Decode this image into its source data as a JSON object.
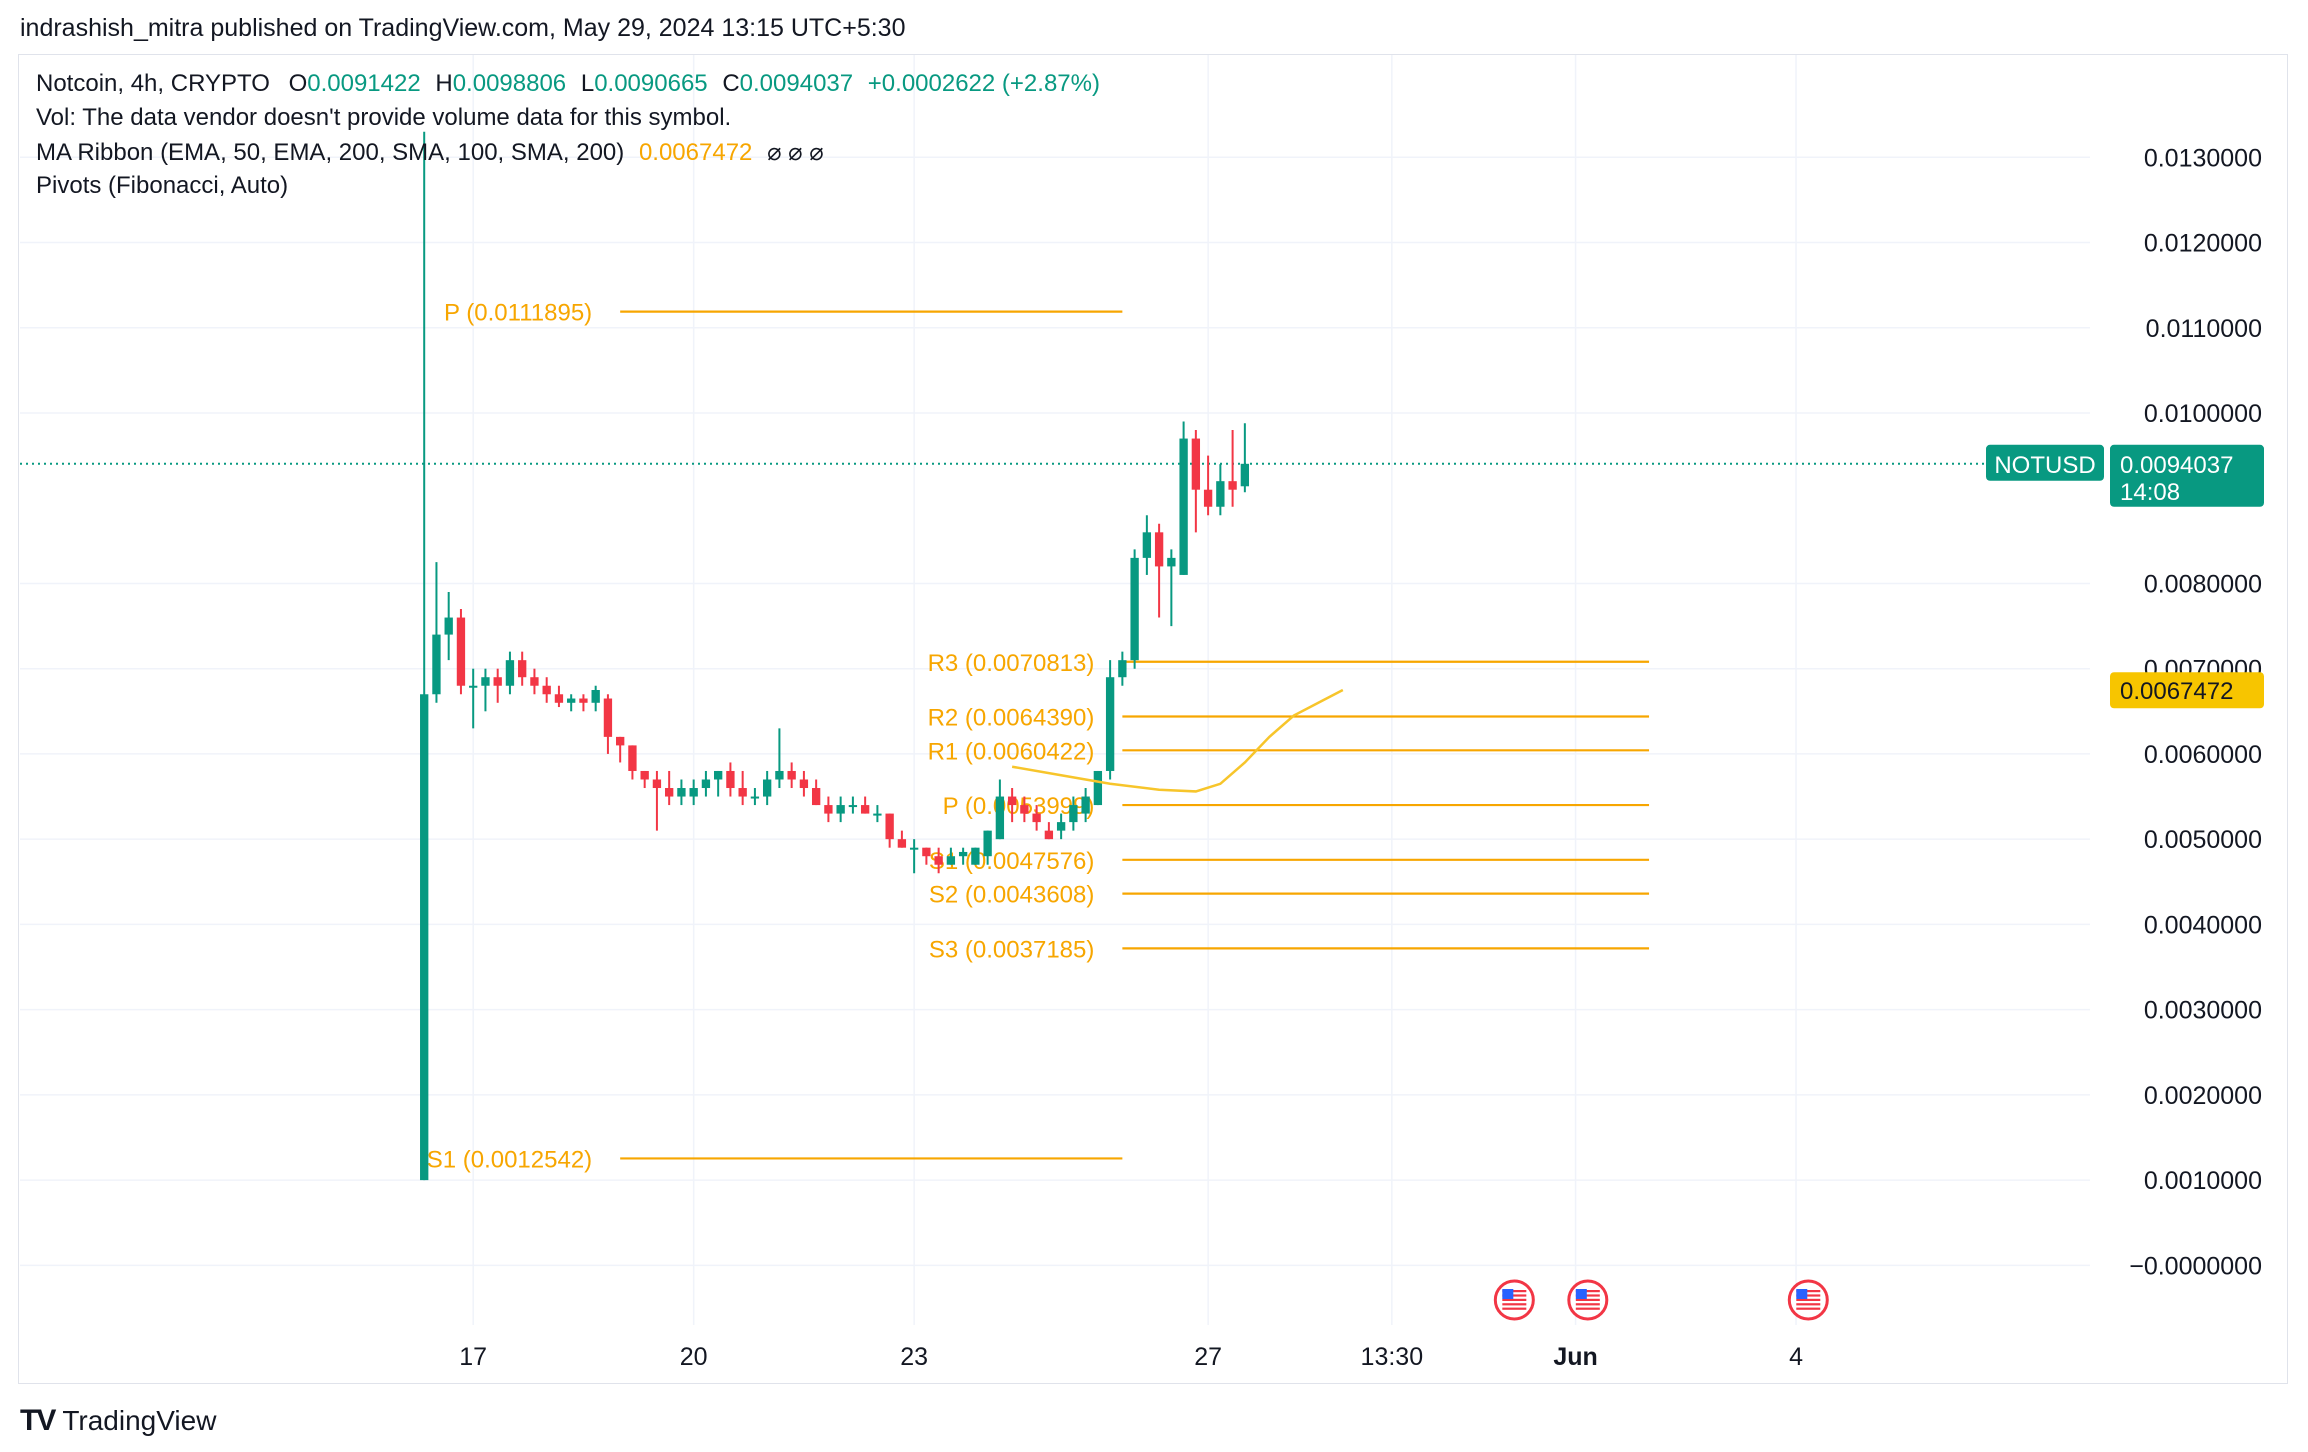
{
  "header": {
    "published": "indrashish_mitra published on TradingView.com, May 29, 2024 13:15 UTC+5:30"
  },
  "legend": {
    "symbol_line": "Notcoin, 4h, CRYPTO",
    "o_label": "O",
    "o_value": "0.0091422",
    "h_label": "H",
    "h_value": "0.0098806",
    "l_label": "L",
    "l_value": "0.0090665",
    "c_label": "C",
    "c_value": "0.0094037",
    "change": "+0.0002622 (+2.87%)",
    "vol_line": "Vol: The data vendor doesn't provide volume data for this symbol.",
    "ma_line": "MA Ribbon (EMA, 50, EMA, 200, SMA, 100, SMA, 200)",
    "ma_value": "0.0067472",
    "ma_na": "⌀  ⌀  ⌀",
    "pivots_line": "Pivots (Fibonacci, Auto)"
  },
  "footer": {
    "brand": "TradingView",
    "logo": "TV"
  },
  "colors": {
    "up": "#089981",
    "down": "#f23645",
    "pivot": "#f7a600",
    "ma": "#f7c52b",
    "grid": "#f0f3fa"
  },
  "chart_data": {
    "type": "candlestick",
    "symbol": "NOTUSD",
    "interval": "4h",
    "y_ticks": [
      "0.0130000",
      "0.0120000",
      "0.0110000",
      "0.0100000",
      "0.0080000",
      "0.0070000",
      "0.0060000",
      "0.0050000",
      "0.0040000",
      "0.0030000",
      "0.0020000",
      "0.0010000",
      "−0.0000000"
    ],
    "y_tick_values": [
      0.013,
      0.012,
      0.011,
      0.01,
      0.008,
      0.007,
      0.006,
      0.005,
      0.004,
      0.003,
      0.002,
      0.001,
      0.0
    ],
    "ylim": [
      -0.0007,
      0.0142
    ],
    "x_ticks": [
      {
        "label": "17",
        "pos": 4
      },
      {
        "label": "20",
        "pos": 22
      },
      {
        "label": "23",
        "pos": 40
      },
      {
        "label": "27",
        "pos": 64
      },
      {
        "label": "13:30",
        "pos": 79
      },
      {
        "label": "Jun",
        "pos": 94,
        "bold": true
      },
      {
        "label": "4",
        "pos": 112
      }
    ],
    "x_range": [
      -33,
      136
    ],
    "last_price_label": {
      "symbol": "NOTUSD",
      "price": "0.0094037",
      "countdown": "14:08",
      "value": 0.0094037
    },
    "ma_price_label": {
      "price": "0.0067472",
      "value": 0.0067472
    },
    "candles": [
      {
        "o": 0.001,
        "h": 0.0133,
        "l": 0.001,
        "c": 0.0067
      },
      {
        "o": 0.0067,
        "h": 0.00825,
        "l": 0.0066,
        "c": 0.0074
      },
      {
        "o": 0.0074,
        "h": 0.0079,
        "l": 0.0071,
        "c": 0.0076
      },
      {
        "o": 0.0076,
        "h": 0.0077,
        "l": 0.0067,
        "c": 0.0068
      },
      {
        "o": 0.0068,
        "h": 0.007,
        "l": 0.0063,
        "c": 0.0068
      },
      {
        "o": 0.0068,
        "h": 0.007,
        "l": 0.0065,
        "c": 0.0069
      },
      {
        "o": 0.0069,
        "h": 0.007,
        "l": 0.0066,
        "c": 0.0068
      },
      {
        "o": 0.0068,
        "h": 0.0072,
        "l": 0.0067,
        "c": 0.0071
      },
      {
        "o": 0.0071,
        "h": 0.0072,
        "l": 0.0068,
        "c": 0.0069
      },
      {
        "o": 0.0069,
        "h": 0.007,
        "l": 0.0067,
        "c": 0.0068
      },
      {
        "o": 0.0068,
        "h": 0.0069,
        "l": 0.0066,
        "c": 0.0067
      },
      {
        "o": 0.0067,
        "h": 0.0068,
        "l": 0.00655,
        "c": 0.0066
      },
      {
        "o": 0.0066,
        "h": 0.0067,
        "l": 0.0065,
        "c": 0.00665
      },
      {
        "o": 0.00665,
        "h": 0.0067,
        "l": 0.0065,
        "c": 0.0066
      },
      {
        "o": 0.0066,
        "h": 0.0068,
        "l": 0.0065,
        "c": 0.00675
      },
      {
        "o": 0.00665,
        "h": 0.0067,
        "l": 0.006,
        "c": 0.0062
      },
      {
        "o": 0.0062,
        "h": 0.0062,
        "l": 0.0059,
        "c": 0.0061
      },
      {
        "o": 0.0061,
        "h": 0.0061,
        "l": 0.0057,
        "c": 0.0058
      },
      {
        "o": 0.0058,
        "h": 0.0058,
        "l": 0.0056,
        "c": 0.0057
      },
      {
        "o": 0.0057,
        "h": 0.0058,
        "l": 0.0051,
        "c": 0.0056
      },
      {
        "o": 0.0056,
        "h": 0.0058,
        "l": 0.0054,
        "c": 0.0055
      },
      {
        "o": 0.0055,
        "h": 0.0057,
        "l": 0.0054,
        "c": 0.0056
      },
      {
        "o": 0.0055,
        "h": 0.0057,
        "l": 0.0054,
        "c": 0.0056
      },
      {
        "o": 0.0056,
        "h": 0.0058,
        "l": 0.0055,
        "c": 0.0057
      },
      {
        "o": 0.0057,
        "h": 0.0058,
        "l": 0.0055,
        "c": 0.0058
      },
      {
        "o": 0.0058,
        "h": 0.0059,
        "l": 0.0055,
        "c": 0.0056
      },
      {
        "o": 0.0056,
        "h": 0.0058,
        "l": 0.0054,
        "c": 0.0055
      },
      {
        "o": 0.0055,
        "h": 0.0056,
        "l": 0.0054,
        "c": 0.0055
      },
      {
        "o": 0.0055,
        "h": 0.0058,
        "l": 0.0054,
        "c": 0.0057
      },
      {
        "o": 0.0057,
        "h": 0.0063,
        "l": 0.0056,
        "c": 0.0058
      },
      {
        "o": 0.0058,
        "h": 0.0059,
        "l": 0.0056,
        "c": 0.0057
      },
      {
        "o": 0.0057,
        "h": 0.0058,
        "l": 0.0055,
        "c": 0.0056
      },
      {
        "o": 0.0056,
        "h": 0.0057,
        "l": 0.0054,
        "c": 0.0054
      },
      {
        "o": 0.0054,
        "h": 0.0055,
        "l": 0.0052,
        "c": 0.0053
      },
      {
        "o": 0.0053,
        "h": 0.0055,
        "l": 0.0052,
        "c": 0.0054
      },
      {
        "o": 0.0054,
        "h": 0.0055,
        "l": 0.0053,
        "c": 0.0054
      },
      {
        "o": 0.0054,
        "h": 0.0055,
        "l": 0.0053,
        "c": 0.0053
      },
      {
        "o": 0.0053,
        "h": 0.0054,
        "l": 0.0052,
        "c": 0.0053
      },
      {
        "o": 0.0053,
        "h": 0.0053,
        "l": 0.0049,
        "c": 0.005
      },
      {
        "o": 0.005,
        "h": 0.0051,
        "l": 0.0049,
        "c": 0.0049
      },
      {
        "o": 0.0049,
        "h": 0.005,
        "l": 0.0046,
        "c": 0.0049
      },
      {
        "o": 0.0049,
        "h": 0.0049,
        "l": 0.0047,
        "c": 0.0048
      },
      {
        "o": 0.0048,
        "h": 0.0049,
        "l": 0.0046,
        "c": 0.0047
      },
      {
        "o": 0.0047,
        "h": 0.0049,
        "l": 0.0047,
        "c": 0.0048
      },
      {
        "o": 0.0048,
        "h": 0.0049,
        "l": 0.0047,
        "c": 0.00485
      },
      {
        "o": 0.0047,
        "h": 0.0049,
        "l": 0.0047,
        "c": 0.0049
      },
      {
        "o": 0.0048,
        "h": 0.0051,
        "l": 0.0047,
        "c": 0.0051
      },
      {
        "o": 0.005,
        "h": 0.0057,
        "l": 0.005,
        "c": 0.0055
      },
      {
        "o": 0.0055,
        "h": 0.0056,
        "l": 0.0052,
        "c": 0.0054
      },
      {
        "o": 0.0054,
        "h": 0.0055,
        "l": 0.0052,
        "c": 0.0053
      },
      {
        "o": 0.0053,
        "h": 0.0054,
        "l": 0.0051,
        "c": 0.0052
      },
      {
        "o": 0.0051,
        "h": 0.0052,
        "l": 0.005,
        "c": 0.005
      },
      {
        "o": 0.0051,
        "h": 0.0053,
        "l": 0.005,
        "c": 0.0052
      },
      {
        "o": 0.0052,
        "h": 0.0055,
        "l": 0.0051,
        "c": 0.0054
      },
      {
        "o": 0.0053,
        "h": 0.0056,
        "l": 0.0052,
        "c": 0.0055
      },
      {
        "o": 0.0054,
        "h": 0.0058,
        "l": 0.0054,
        "c": 0.0058
      },
      {
        "o": 0.0058,
        "h": 0.0071,
        "l": 0.0057,
        "c": 0.0069
      },
      {
        "o": 0.0069,
        "h": 0.0072,
        "l": 0.0068,
        "c": 0.0071
      },
      {
        "o": 0.0071,
        "h": 0.0084,
        "l": 0.007,
        "c": 0.0083
      },
      {
        "o": 0.0083,
        "h": 0.0088,
        "l": 0.0081,
        "c": 0.0086
      },
      {
        "o": 0.0086,
        "h": 0.0087,
        "l": 0.0076,
        "c": 0.0082
      },
      {
        "o": 0.0082,
        "h": 0.0084,
        "l": 0.0075,
        "c": 0.0083
      },
      {
        "o": 0.0081,
        "h": 0.0099,
        "l": 0.0081,
        "c": 0.0097
      },
      {
        "o": 0.0097,
        "h": 0.0098,
        "l": 0.0086,
        "c": 0.0091
      },
      {
        "o": 0.0091,
        "h": 0.0095,
        "l": 0.0088,
        "c": 0.0089
      },
      {
        "o": 0.0089,
        "h": 0.0094,
        "l": 0.0088,
        "c": 0.0092
      },
      {
        "o": 0.0092,
        "h": 0.0098,
        "l": 0.0089,
        "c": 0.0091
      },
      {
        "o": 0.00914,
        "h": 0.00988,
        "l": 0.00907,
        "c": 0.0094037
      }
    ],
    "ma_line": {
      "name": "MA Ribbon",
      "points": [
        [
          48,
          0.00585
        ],
        [
          52,
          0.00575
        ],
        [
          56,
          0.00565
        ],
        [
          60,
          0.00558
        ],
        [
          63,
          0.00556
        ],
        [
          65,
          0.00565
        ],
        [
          67,
          0.0059
        ],
        [
          69,
          0.0062
        ],
        [
          71,
          0.00645
        ],
        [
          73,
          0.0066
        ],
        [
          75,
          0.00675
        ]
      ]
    },
    "pivot_sets": [
      {
        "x_start": 16,
        "x_end": 57,
        "levels": [
          {
            "label": "P (0.0111895)",
            "value": 0.0111895
          },
          {
            "label": "S1 (0.0012542)",
            "value": 0.0012542
          }
        ]
      },
      {
        "x_start": 57,
        "x_end": 100,
        "levels": [
          {
            "label": "R3 (0.0070813)",
            "value": 0.0070813
          },
          {
            "label": "R2 (0.0064390)",
            "value": 0.006439
          },
          {
            "label": "R1 (0.0060422)",
            "value": 0.0060422
          },
          {
            "label": "P (0.0053999)",
            "value": 0.0053999
          },
          {
            "label": "S1 (0.0047576)",
            "value": 0.0047576
          },
          {
            "label": "S2 (0.0043608)",
            "value": 0.0043608
          },
          {
            "label": "S3 (0.0037185)",
            "value": 0.0037185
          }
        ]
      }
    ],
    "event_flags": [
      {
        "pos": 89
      },
      {
        "pos": 95
      },
      {
        "pos": 113
      }
    ]
  }
}
